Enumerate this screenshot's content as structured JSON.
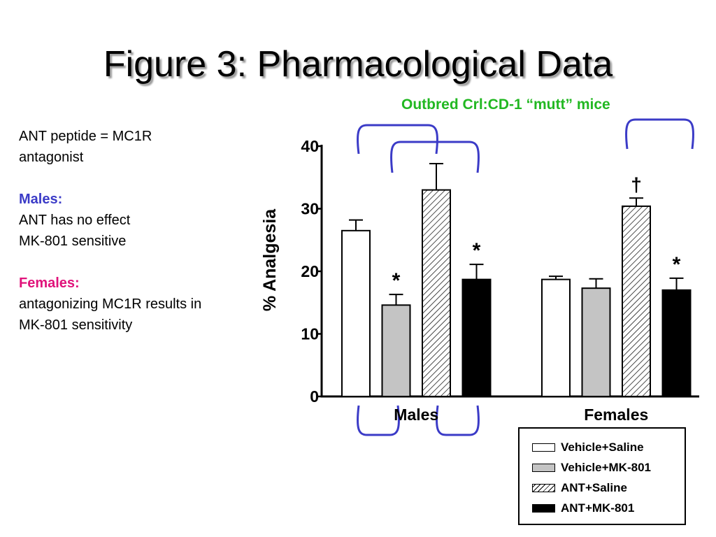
{
  "slide": {
    "title": "Figure 3: Pharmacological Data",
    "subtitle": "Outbred Crl:CD-1 “mutt” mice"
  },
  "notes": {
    "intro_line1": "ANT peptide = MC1R",
    "intro_line2": "antagonist",
    "males_heading": "Males:",
    "males_line1": "ANT has no effect",
    "males_line2": "MK-801 sensitive",
    "females_heading": "Females:",
    "females_line1": "antagonizing MC1R results in",
    "females_line2": "MK-801 sensitivity"
  },
  "colors": {
    "vehicle_saline": "#ffffff",
    "vehicle_mk801": "#c4c4c4",
    "ant_saline": "hatched",
    "ant_mk801": "#000000",
    "bracket": "#3b3bc7",
    "subtitle": "#22b822",
    "males_heading": "#3b3bc7",
    "females_heading": "#e0127a"
  },
  "chart_data": {
    "type": "bar",
    "title": "",
    "xlabel": "",
    "ylabel": "% Analgesia",
    "ylim": [
      0,
      40
    ],
    "yticks": [
      "0",
      "10",
      "20",
      "30",
      "40"
    ],
    "categories": [
      "Males",
      "Females"
    ],
    "series": [
      {
        "name": "Vehicle+Saline",
        "fill": "white",
        "values": [
          26.5,
          18.7
        ],
        "errors": [
          1.7,
          0.5
        ]
      },
      {
        "name": "Vehicle+MK-801",
        "fill": "gray",
        "values": [
          14.6,
          17.3
        ],
        "errors": [
          1.7,
          1.5
        ]
      },
      {
        "name": "ANT+Saline",
        "fill": "hatch",
        "values": [
          33.0,
          30.4
        ],
        "errors": [
          4.2,
          1.3
        ]
      },
      {
        "name": "ANT+MK-801",
        "fill": "black",
        "values": [
          18.7,
          17.0
        ],
        "errors": [
          2.4,
          1.9
        ]
      }
    ],
    "annotations": [
      {
        "category": "Males",
        "series": "Vehicle+MK-801",
        "text": "*"
      },
      {
        "category": "Males",
        "series": "ANT+MK-801",
        "text": "*"
      },
      {
        "category": "Females",
        "series": "ANT+Saline",
        "text": "†"
      },
      {
        "category": "Females",
        "series": "ANT+MK-801",
        "text": "*"
      }
    ],
    "legend_position": "bottom-right",
    "grid": false
  }
}
